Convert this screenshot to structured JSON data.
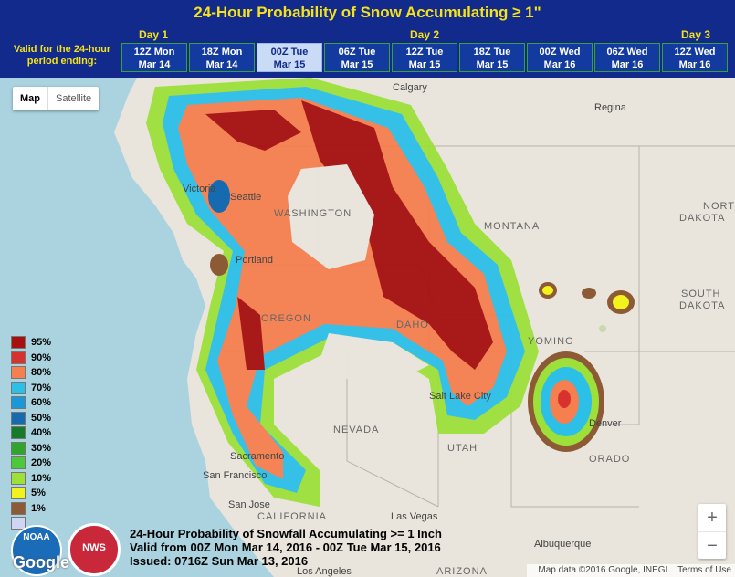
{
  "header": {
    "title": "24-Hour Probability of Snow Accumulating ≥ 1\"",
    "days": [
      "Day 1",
      "Day 2",
      "Day 3"
    ],
    "valid_label_line1": "Valid for the 24-hour",
    "valid_label_line2": "period ending:",
    "tabs": [
      {
        "line1": "12Z Mon",
        "line2": "Mar 14"
      },
      {
        "line1": "18Z Mon",
        "line2": "Mar 14"
      },
      {
        "line1": "00Z Tue",
        "line2": "Mar 15"
      },
      {
        "line1": "06Z Tue",
        "line2": "Mar 15"
      },
      {
        "line1": "12Z Tue",
        "line2": "Mar 15"
      },
      {
        "line1": "18Z Tue",
        "line2": "Mar 15"
      },
      {
        "line1": "00Z Wed",
        "line2": "Mar 16"
      },
      {
        "line1": "06Z Wed",
        "line2": "Mar 16"
      },
      {
        "line1": "12Z Wed",
        "line2": "Mar 16"
      }
    ],
    "active_tab": "00Z Tue Mar 15"
  },
  "map_type": {
    "map": "Map",
    "satellite": "Satellite",
    "selected": "Map"
  },
  "legend": [
    {
      "label": "95%",
      "color": "#a51010"
    },
    {
      "label": "90%",
      "color": "#d8322e"
    },
    {
      "label": "80%",
      "color": "#f57f4f"
    },
    {
      "label": "70%",
      "color": "#2cbfe8"
    },
    {
      "label": "60%",
      "color": "#1c97d8"
    },
    {
      "label": "50%",
      "color": "#166ab0"
    },
    {
      "label": "40%",
      "color": "#157a2a"
    },
    {
      "label": "30%",
      "color": "#2fa52a"
    },
    {
      "label": "20%",
      "color": "#4cc93a"
    },
    {
      "label": "10%",
      "color": "#9de03a"
    },
    {
      "label": "5%",
      "color": "#f2f21d"
    },
    {
      "label": "1%",
      "color": "#8c5a34"
    },
    {
      "label": "",
      "color": "#cfd6f3"
    }
  ],
  "caption": {
    "line1": "24-Hour Probability of Snowfall Accumulating >= 1 Inch",
    "line2": "Valid from 00Z Mon Mar 14, 2016 - 00Z Tue Mar 15, 2016",
    "line3": "Issued: 0716Z Sun Mar 13, 2016"
  },
  "cities": {
    "calgary": "Calgary",
    "regina": "Regina",
    "victoria": "Victoria",
    "seattle": "Seattle",
    "portland": "Portland",
    "salt_lake": "Salt Lake City",
    "denver": "Denver",
    "sacramento": "Sacramento",
    "san_francisco": "San Francisco",
    "san_jose": "San Jose",
    "las_vegas": "Las Vegas",
    "albuquerque": "Albuquerque",
    "los_angeles": "Los Angeles"
  },
  "regions": {
    "washington": "WASHINGTON",
    "montana": "MONTANA",
    "north_dakota_1": "NORTH",
    "north_dakota_2": "DAKOTA",
    "south_dakota_1": "SOUTH",
    "south_dakota_2": "DAKOTA",
    "oregon": "OREGON",
    "idaho": "IDAHO",
    "wyoming": "YOMING",
    "nevada": "NEVADA",
    "utah": "UTAH",
    "colorado": "ORADO",
    "california": "CALIFORNIA",
    "arizona": "ARIZONA"
  },
  "zoom": {
    "in": "+",
    "out": "−"
  },
  "attribution": {
    "data": "Map data ©2016 Google, INEGI",
    "terms": "Terms of Use"
  },
  "google_logo": "Google",
  "logos": {
    "noaa": "NOAA",
    "nws": "NWS"
  }
}
